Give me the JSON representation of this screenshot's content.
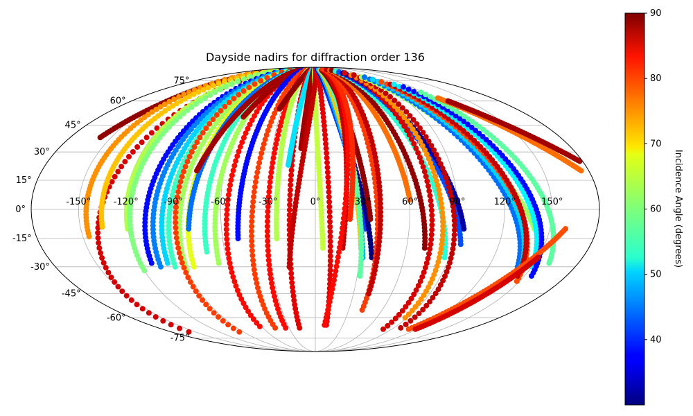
{
  "chart_data": {
    "type": "scatter",
    "projection": "mollweide",
    "title": "Dayside nadirs for diffraction order 136",
    "x_ticks": [
      "-150°",
      "-120°",
      "-90°",
      "-60°",
      "-30°",
      "0°",
      "30°",
      "60°",
      "90°",
      "120°",
      "150°"
    ],
    "y_ticks": [
      "75°",
      "60°",
      "45°",
      "30°",
      "15°",
      "0°",
      "-15°",
      "-30°",
      "-45°",
      "-60°",
      "-75°"
    ],
    "xlim": [
      -180,
      180
    ],
    "ylim": [
      -90,
      90
    ],
    "grid": true,
    "colormap": "jet",
    "colorbar": {
      "label": "Incidence Angle (degrees)",
      "range": [
        30,
        90
      ],
      "ticks": [
        "40",
        "50",
        "60",
        "70",
        "80",
        "90"
      ],
      "placement": "right"
    },
    "tracks": [
      {
        "lon_start": -108,
        "lat_start": 88,
        "lon_end": -158,
        "lat_end": -70,
        "inc": 85
      },
      {
        "lon_start": -128,
        "lat_start": 88,
        "lon_end": -158,
        "lat_end": 38,
        "inc": 89
      },
      {
        "lon_start": -140,
        "lat_start": 84,
        "lon_end": -146,
        "lat_end": -14,
        "inc": 74
      },
      {
        "lon_start": -130,
        "lat_start": 85,
        "lon_end": -136,
        "lat_end": -9,
        "inc": 71
      },
      {
        "lon_start": -115,
        "lat_start": 88,
        "lon_end": -120,
        "lat_end": -10,
        "inc": 63
      },
      {
        "lon_start": -110,
        "lat_start": 88,
        "lon_end": -120,
        "lat_end": -32,
        "inc": 60
      },
      {
        "lon_start": -92,
        "lat_start": 88,
        "lon_end": -112,
        "lat_end": -28,
        "inc": 38
      },
      {
        "lon_start": -88,
        "lat_start": 88,
        "lon_end": -107,
        "lat_end": -30,
        "inc": 45
      },
      {
        "lon_start": -83,
        "lat_start": 88,
        "lon_end": -101,
        "lat_end": -28,
        "inc": 50
      },
      {
        "lon_start": -78,
        "lat_start": 88,
        "lon_end": -97,
        "lat_end": -30,
        "inc": 56
      },
      {
        "lon_start": -73,
        "lat_start": 88,
        "lon_end": -90,
        "lat_end": -32,
        "inc": 62
      },
      {
        "lon_start": -68,
        "lat_start": 88,
        "lon_end": -84,
        "lat_end": -30,
        "inc": 66
      },
      {
        "lon_start": -80,
        "lat_start": 88,
        "lon_end": -95,
        "lat_end": -70,
        "inc": 79
      },
      {
        "lon_start": -64,
        "lat_start": 86,
        "lon_end": -81,
        "lat_end": -10,
        "inc": 44
      },
      {
        "lon_start": -60,
        "lat_start": 86,
        "lon_end": -72,
        "lat_end": -22,
        "inc": 56
      },
      {
        "lon_start": -54,
        "lat_start": 86,
        "lon_end": -66,
        "lat_end": -28,
        "inc": 62
      },
      {
        "lon_start": -48,
        "lat_start": 86,
        "lon_end": -62,
        "lat_end": -66,
        "inc": 82
      },
      {
        "lon_start": -45,
        "lat_start": 85,
        "lon_end": -60,
        "lat_end": 50,
        "inc": 88
      },
      {
        "lon_start": -55,
        "lat_start": 86,
        "lon_end": -78,
        "lat_end": 20,
        "inc": 88
      },
      {
        "lon_start": -40,
        "lat_start": 85,
        "lon_end": -50,
        "lat_end": -15,
        "inc": 38
      },
      {
        "lon_start": -32,
        "lat_start": 85,
        "lon_end": -46,
        "lat_end": -67,
        "inc": 79
      },
      {
        "lon_start": -25,
        "lat_start": 85,
        "lon_end": -34,
        "lat_end": -67,
        "inc": 82
      },
      {
        "lon_start": -22,
        "lat_start": 85,
        "lon_end": -25,
        "lat_end": -15,
        "inc": 63
      },
      {
        "lon_start": -18,
        "lat_start": 85,
        "lon_end": -32,
        "lat_end": 55,
        "inc": 89
      },
      {
        "lon_start": -14,
        "lat_start": 87,
        "lon_end": -18,
        "lat_end": -67,
        "inc": 84
      },
      {
        "lon_start": -10,
        "lat_start": 87,
        "lon_end": -18,
        "lat_end": 23,
        "inc": 51
      },
      {
        "lon_start": -5,
        "lat_start": 88,
        "lon_end": -10,
        "lat_end": 32,
        "inc": 88
      },
      {
        "lon_start": -2,
        "lat_start": 88,
        "lon_end": 5,
        "lat_end": -20,
        "inc": 64
      },
      {
        "lon_start": 2,
        "lat_start": 88,
        "lon_end": -18,
        "lat_end": -30,
        "inc": 86
      },
      {
        "lon_start": 5,
        "lat_start": 88,
        "lon_end": 12,
        "lat_end": -65,
        "inc": 84
      },
      {
        "lon_start": 8,
        "lat_start": 87,
        "lon_end": 32,
        "lat_end": -10,
        "inc": 41
      },
      {
        "lon_start": 10,
        "lat_start": 86,
        "lon_end": 38,
        "lat_end": -25,
        "inc": 30
      },
      {
        "lon_start": 12,
        "lat_start": 86,
        "lon_end": 32,
        "lat_end": -25,
        "inc": 48
      },
      {
        "lon_start": 15,
        "lat_start": 85,
        "lon_end": 30,
        "lat_end": -20,
        "inc": 71
      },
      {
        "lon_start": 18,
        "lat_start": 85,
        "lon_end": 32,
        "lat_end": -35,
        "inc": 58
      },
      {
        "lon_start": 20,
        "lat_start": 85,
        "lon_end": 35,
        "lat_end": -5,
        "inc": 89
      },
      {
        "lon_start": 25,
        "lat_start": 86,
        "lon_end": 18,
        "lat_end": -20,
        "inc": 86
      },
      {
        "lon_start": 30,
        "lat_start": 86,
        "lon_end": 10,
        "lat_end": -65,
        "inc": 82
      },
      {
        "lon_start": 32,
        "lat_start": 87,
        "lon_end": 22,
        "lat_end": -5,
        "inc": 80
      },
      {
        "lon_start": 35,
        "lat_start": 87,
        "lon_end": 42,
        "lat_end": -55,
        "inc": 79
      },
      {
        "lon_start": 40,
        "lat_start": 86,
        "lon_end": 42,
        "lat_end": -45,
        "inc": 86
      },
      {
        "lon_start": 45,
        "lat_start": 85,
        "lon_end": 60,
        "lat_end": 5,
        "inc": 76
      },
      {
        "lon_start": 50,
        "lat_start": 85,
        "lon_end": 72,
        "lat_end": -20,
        "inc": 89
      },
      {
        "lon_start": 55,
        "lat_start": 84,
        "lon_end": 87,
        "lat_end": -25,
        "inc": 55
      },
      {
        "lon_start": 58,
        "lat_start": 83,
        "lon_end": 95,
        "lat_end": -18,
        "inc": 42
      },
      {
        "lon_start": 62,
        "lat_start": 82,
        "lon_end": 95,
        "lat_end": -10,
        "inc": 32
      },
      {
        "lon_start": 66,
        "lat_start": 82,
        "lon_end": 80,
        "lat_end": -68,
        "inc": 85
      },
      {
        "lon_start": 70,
        "lat_start": 80,
        "lon_end": 88,
        "lat_end": -60,
        "inc": 74
      },
      {
        "lon_start": 75,
        "lat_start": 80,
        "lon_end": 98,
        "lat_end": -67,
        "inc": 86
      },
      {
        "lon_start": 80,
        "lat_start": 78,
        "lon_end": 140,
        "lat_end": -10,
        "inc": 62
      },
      {
        "lon_start": 85,
        "lat_start": 78,
        "lon_end": 140,
        "lat_end": -30,
        "inc": 44
      },
      {
        "lon_start": 90,
        "lat_start": 76,
        "lon_end": 145,
        "lat_end": -35,
        "inc": 50
      },
      {
        "lon_start": 95,
        "lat_start": 74,
        "lon_end": 148,
        "lat_end": -38,
        "inc": 78
      },
      {
        "lon_start": 100,
        "lat_start": 72,
        "lon_end": 145,
        "lat_end": -35,
        "inc": 86
      },
      {
        "lon_start": 105,
        "lat_start": 72,
        "lon_end": 150,
        "lat_end": -30,
        "inc": 52
      },
      {
        "lon_start": 110,
        "lat_start": 70,
        "lon_end": 155,
        "lat_end": -35,
        "inc": 38
      },
      {
        "lon_start": 118,
        "lat_start": 66,
        "lon_end": 160,
        "lat_end": -28,
        "inc": 58
      },
      {
        "lon_start": 125,
        "lat_start": 62,
        "lon_end": 175,
        "lat_end": 20,
        "inc": 76
      },
      {
        "lon_start": 130,
        "lat_start": 60,
        "lon_end": 178,
        "lat_end": 25,
        "inc": 88
      },
      {
        "lon_start": 160,
        "lat_start": -10,
        "lon_end": 110,
        "lat_end": -68,
        "inc": 78
      },
      {
        "lon_start": 150,
        "lat_start": -25,
        "lon_end": 118,
        "lat_end": -68,
        "inc": 85
      }
    ]
  }
}
